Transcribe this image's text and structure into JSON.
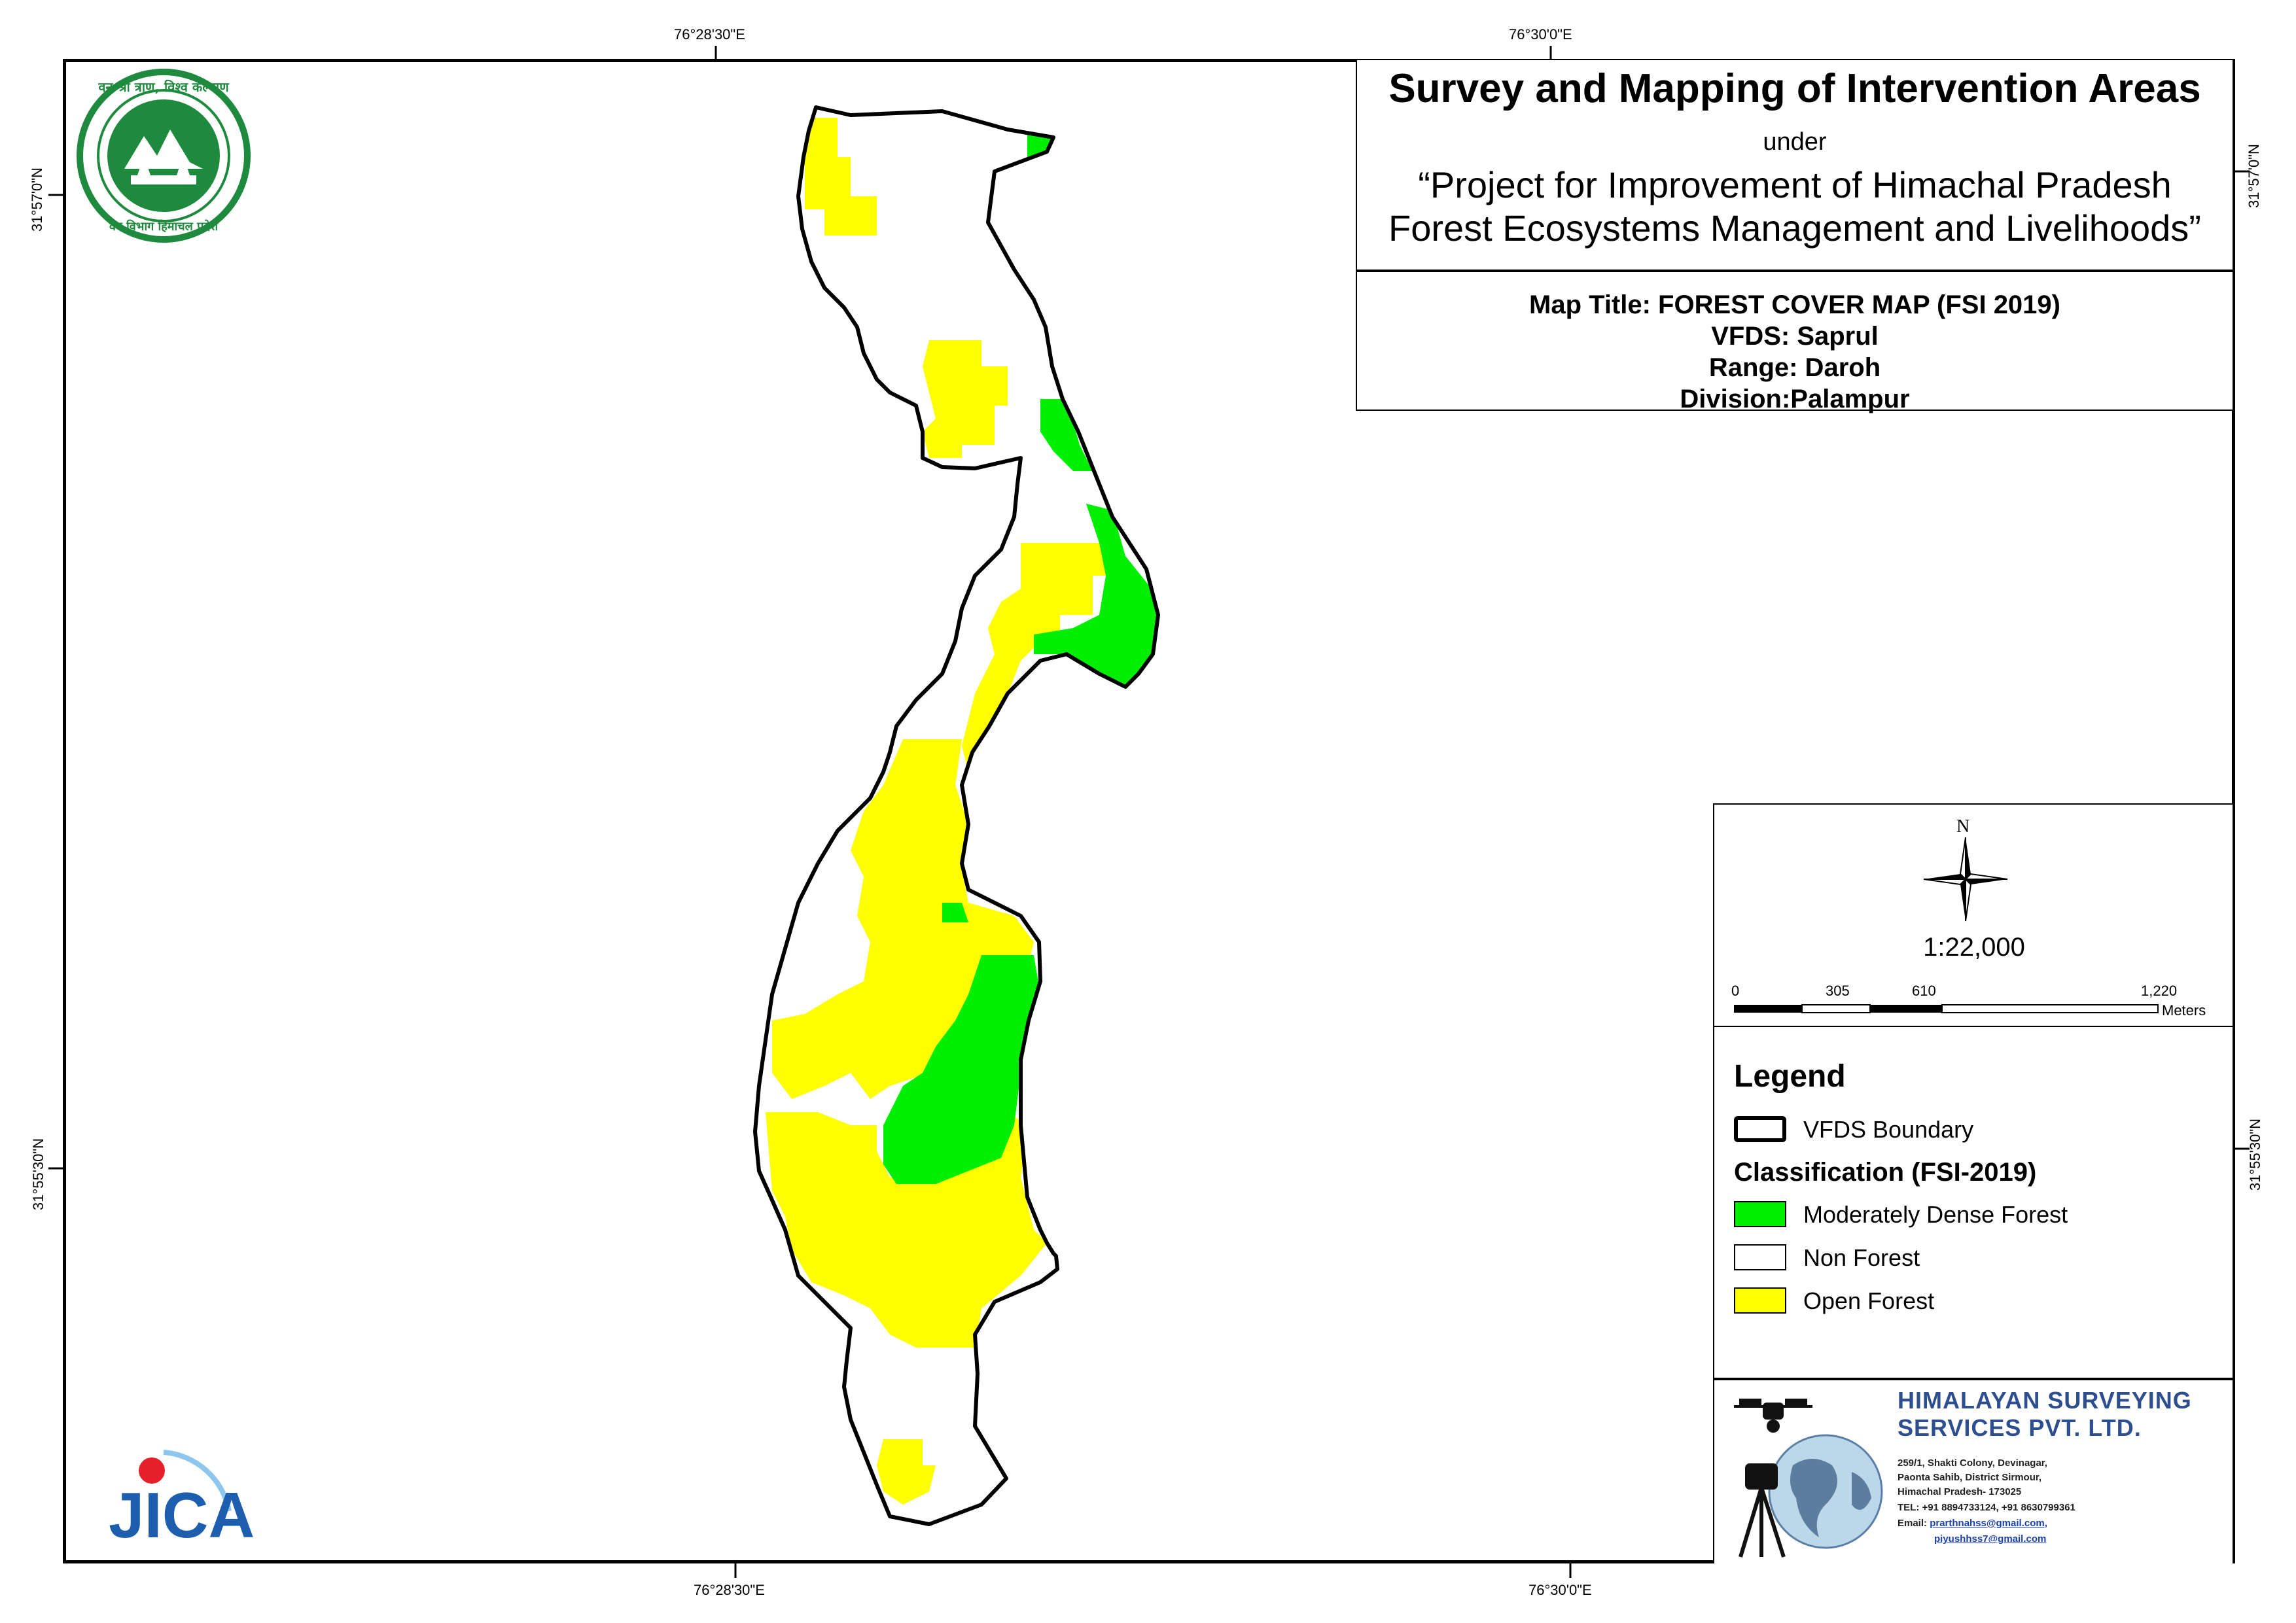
{
  "coordinates": {
    "top": [
      "76°28'30\"E",
      "76°30'0\"E"
    ],
    "bottom": [
      "76°28'30\"E",
      "76°30'0\"E"
    ],
    "left": [
      "31°57'0\"N",
      "31°55'30\"N"
    ],
    "right": [
      "31°57'0\"N",
      "31°55'30\"N"
    ]
  },
  "header": {
    "title": "Survey and Mapping of Intervention Areas",
    "under": "under",
    "project_line1": "“Project for Improvement of Himachal Pradesh",
    "project_line2": "Forest Ecosystems Management and Livelihoods”"
  },
  "map_info": {
    "map_title": "Map Title: FOREST COVER MAP (FSI 2019)",
    "vfds": "VFDS: Saprul",
    "range": "Range: Daroh",
    "division": "Division:Palampur"
  },
  "scale": {
    "north": "N",
    "ratio": "1:22,000",
    "ticks": [
      "0",
      "305",
      "610",
      "1,220"
    ],
    "unit": "Meters"
  },
  "legend": {
    "title": "Legend",
    "boundary_label": "VFDS Boundary",
    "classification_title": "Classification (FSI-2019)",
    "items": [
      {
        "label": "Moderately Dense Forest",
        "color": "#00ee00"
      },
      {
        "label": "Non Forest",
        "color": "#ffffff"
      },
      {
        "label": "Open Forest",
        "color": "#ffff00"
      }
    ]
  },
  "company": {
    "name_line1": "HIMALAYAN SURVEYING",
    "name_line2": "SERVICES PVT. LTD.",
    "address1": "259/1, Shakti Colony, Devinagar,",
    "address2": "Paonta Sahib, District Sirmour,",
    "address3": "Himachal Pradesh- 173025",
    "phone": "TEL: +91 8894733124, +91 8630799361",
    "email_label": "Email:",
    "email1": "prarthnahss@gmail.com,",
    "email2": "piyushhss7@gmail.com"
  },
  "logos": {
    "hp_forest_text_top": "वन श्री त्राण, विश्व कल्याण",
    "hp_forest_text_bottom": "वन विभाग हिमाचल प्रदेश",
    "jica_text": "JICA"
  },
  "colors": {
    "moderately_dense": "#00ee00",
    "open_forest": "#ffff00",
    "non_forest": "#ffffff",
    "boundary": "#000000"
  }
}
